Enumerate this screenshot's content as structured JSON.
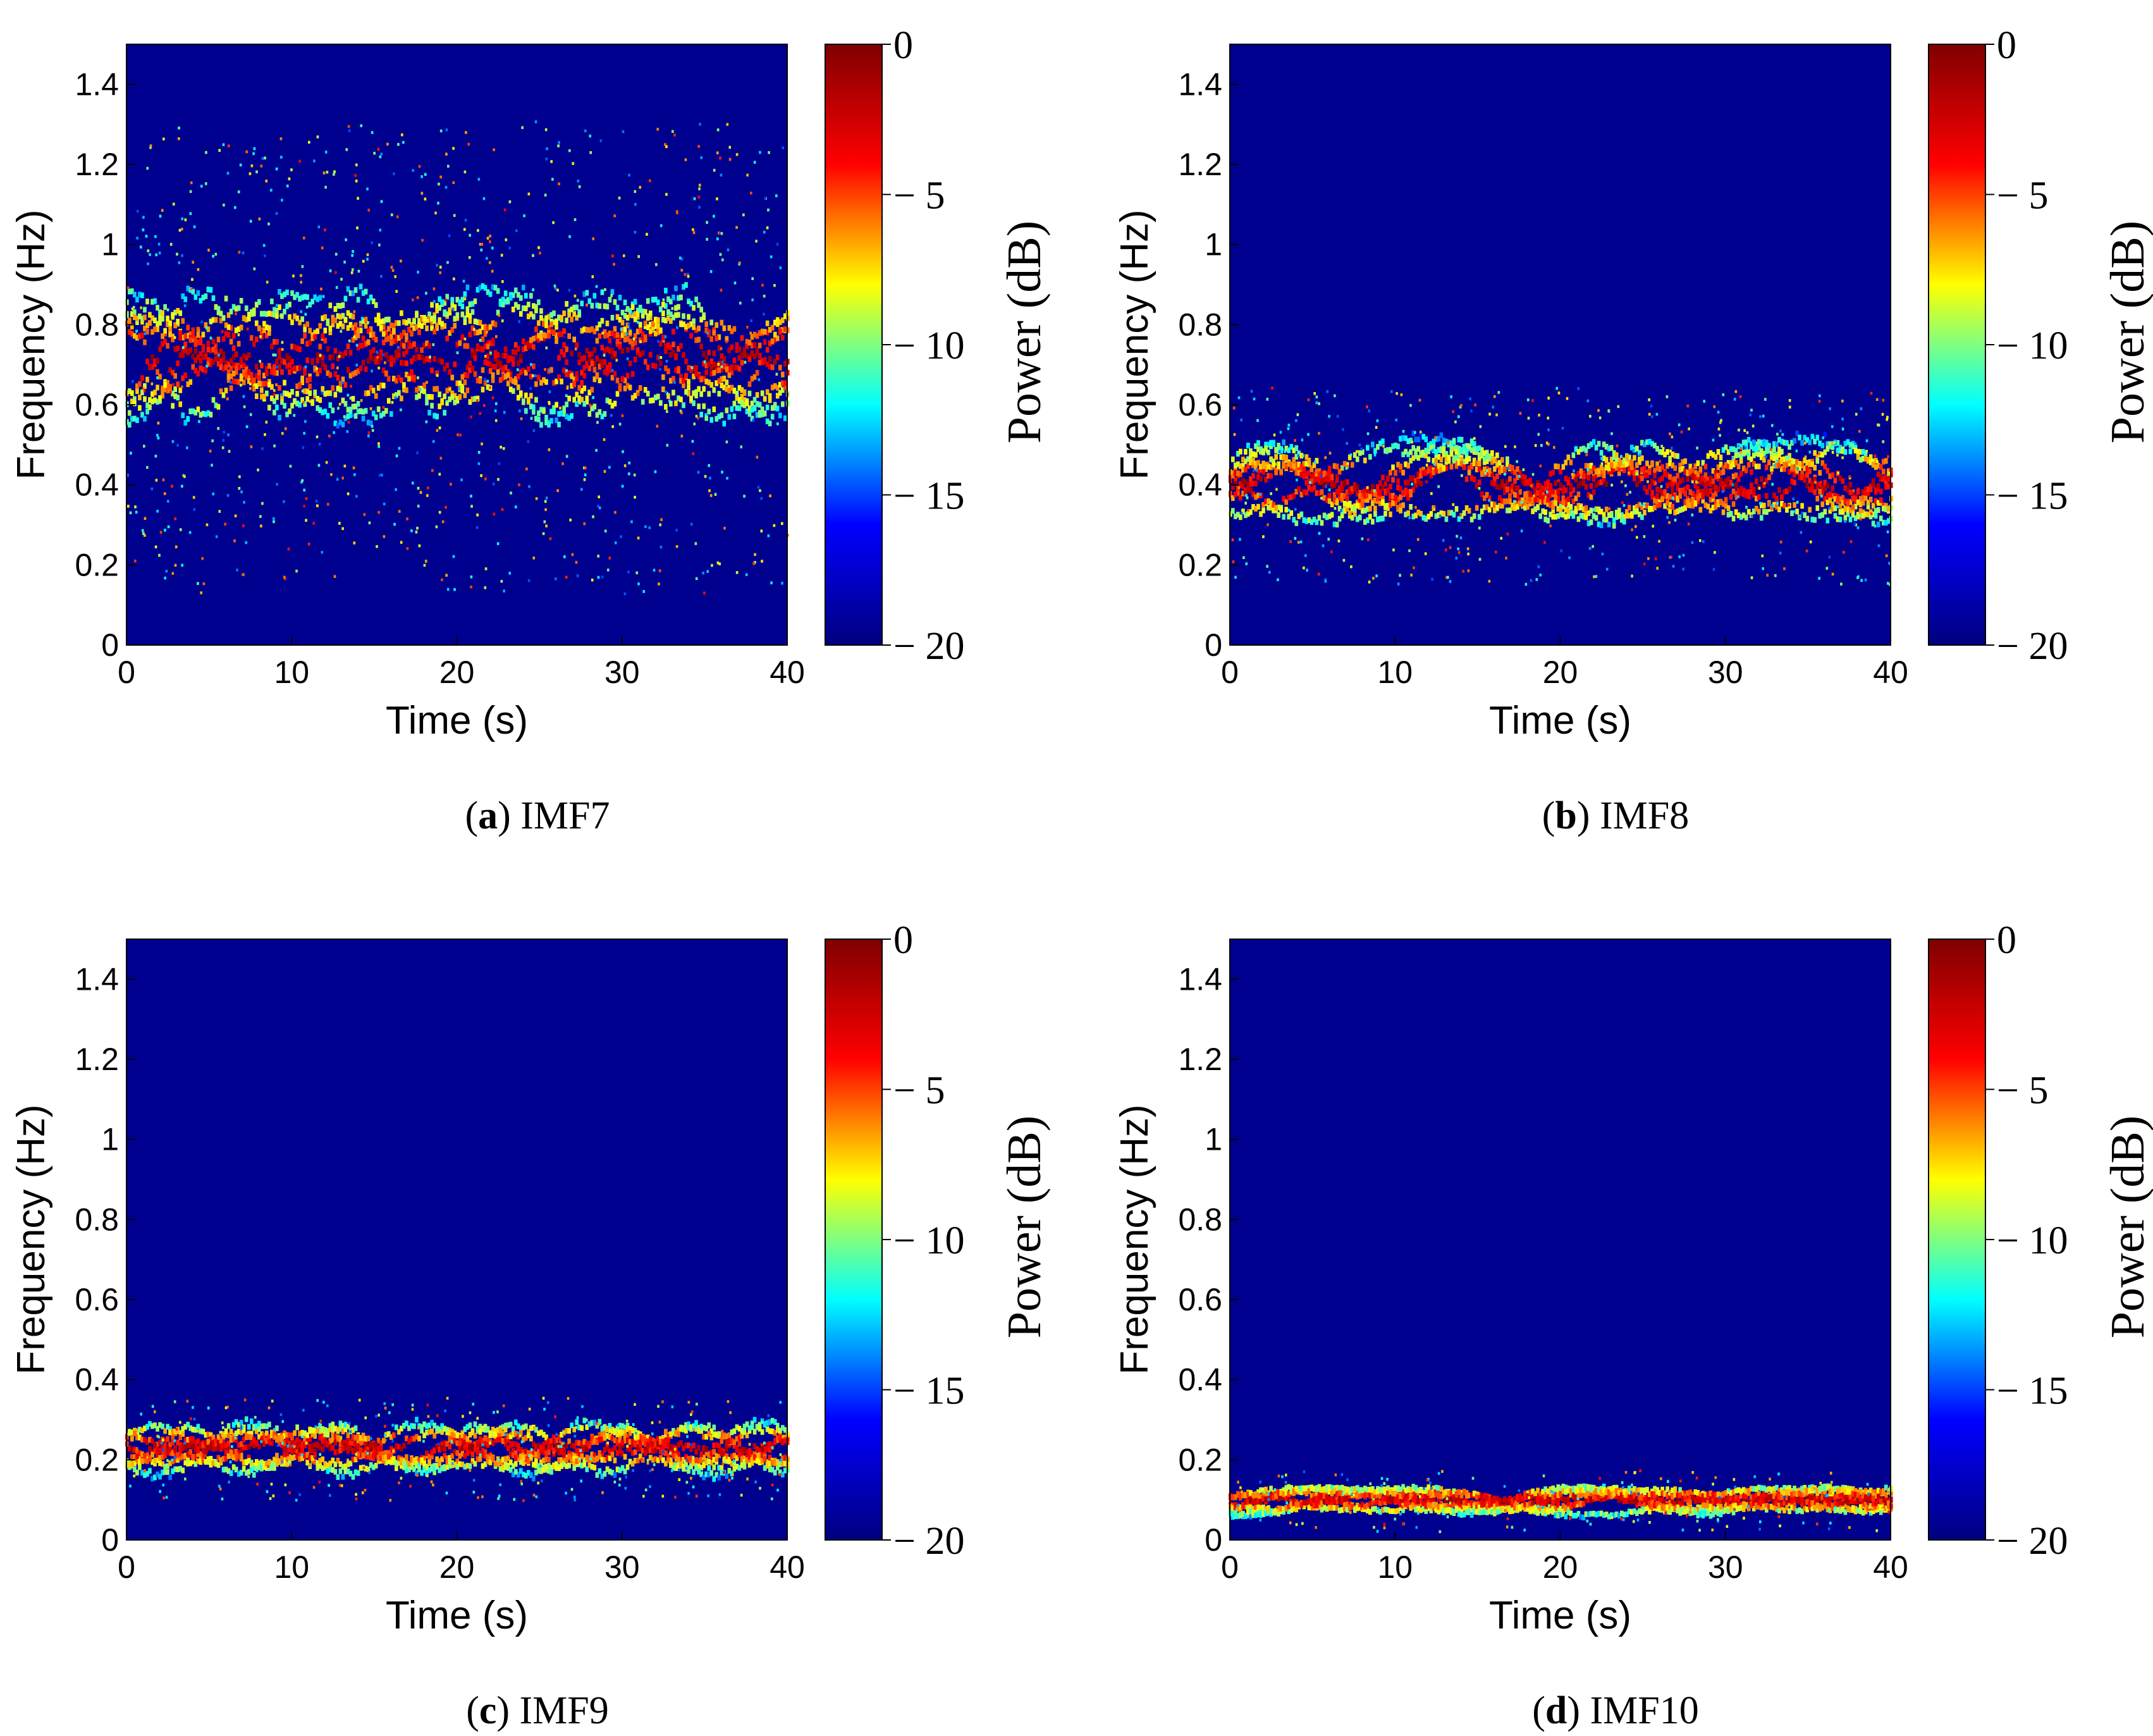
{
  "chart_data": [
    {
      "type": "heatmap",
      "caption_letter": "a",
      "caption_text": "IMF7",
      "xlabel": "Time (s)",
      "ylabel": "Frequency (Hz)",
      "xlim": [
        0,
        40
      ],
      "ylim": [
        0,
        1.5
      ],
      "xticks": [
        "0",
        "10",
        "20",
        "30",
        "40"
      ],
      "yticks": [
        "0",
        "0.2",
        "0.4",
        "0.6",
        "0.8",
        "1",
        "1.2",
        "1.4"
      ],
      "colorbar": {
        "label": "Power (dB)",
        "range": [
          -20,
          0
        ],
        "ticks": [
          "0",
          "− 5",
          "− 10",
          "− 15",
          "− 20"
        ]
      },
      "ridge": {
        "center_hz": 0.72,
        "spread_hz": 0.12,
        "scatter": "high"
      }
    },
    {
      "type": "heatmap",
      "caption_letter": "b",
      "caption_text": "IMF8",
      "xlabel": "Time (s)",
      "ylabel": "Frequency (Hz)",
      "xlim": [
        0,
        40
      ],
      "ylim": [
        0,
        1.5
      ],
      "xticks": [
        "0",
        "10",
        "20",
        "30",
        "40"
      ],
      "yticks": [
        "0",
        "0.2",
        "0.4",
        "0.6",
        "0.8",
        "1",
        "1.2",
        "1.4"
      ],
      "colorbar": {
        "label": "Power (dB)",
        "range": [
          -20,
          0
        ],
        "ticks": [
          "0",
          "− 5",
          "− 10",
          "− 15",
          "− 20"
        ]
      },
      "ridge": {
        "center_hz": 0.4,
        "spread_hz": 0.08,
        "scatter": "medium"
      }
    },
    {
      "type": "heatmap",
      "caption_letter": "c",
      "caption_text": "IMF9",
      "xlabel": "Time (s)",
      "ylabel": "Frequency (Hz)",
      "xlim": [
        0,
        40
      ],
      "ylim": [
        0,
        1.5
      ],
      "xticks": [
        "0",
        "10",
        "20",
        "30",
        "40"
      ],
      "yticks": [
        "0",
        "0.2",
        "0.4",
        "0.6",
        "0.8",
        "1",
        "1.2",
        "1.4"
      ],
      "colorbar": {
        "label": "Power (dB)",
        "range": [
          -20,
          0
        ],
        "ticks": [
          "0",
          "− 5",
          "− 10",
          "− 15",
          "− 20"
        ]
      },
      "ridge": {
        "center_hz": 0.23,
        "spread_hz": 0.05,
        "scatter": "low"
      }
    },
    {
      "type": "heatmap",
      "caption_letter": "d",
      "caption_text": "IMF10",
      "xlabel": "Time (s)",
      "ylabel": "Frequency (Hz)",
      "xlim": [
        0,
        40
      ],
      "ylim": [
        0,
        1.5
      ],
      "xticks": [
        "0",
        "10",
        "20",
        "30",
        "40"
      ],
      "yticks": [
        "0",
        "0.2",
        "0.4",
        "0.6",
        "0.8",
        "1",
        "1.2",
        "1.4"
      ],
      "colorbar": {
        "label": "Power (dB)",
        "range": [
          -20,
          0
        ],
        "ticks": [
          "0",
          "− 5",
          "− 10",
          "− 15",
          "− 20"
        ]
      },
      "ridge": {
        "center_hz": 0.1,
        "spread_hz": 0.03,
        "scatter": "very-low"
      }
    }
  ],
  "colors": {
    "background_dark_blue": "#00008f",
    "colormap": [
      "#00007f",
      "#0000ff",
      "#00ffff",
      "#ffff00",
      "#ff0000",
      "#7f0000"
    ]
  }
}
